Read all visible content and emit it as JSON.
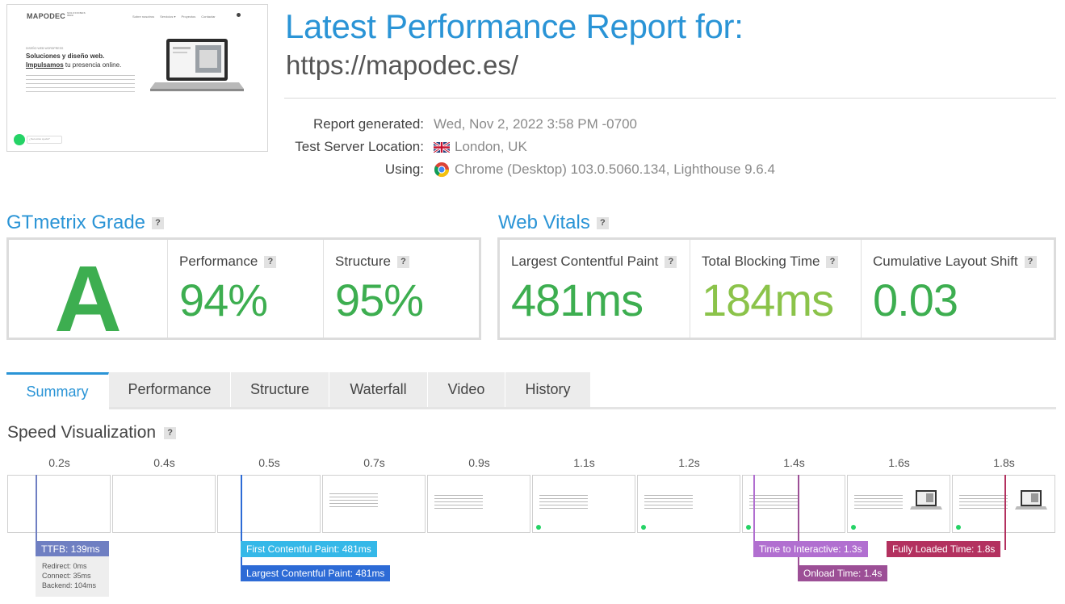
{
  "report": {
    "title": "Latest Performance Report for:",
    "url": "https://mapodec.es/",
    "generated_label": "Report generated:",
    "generated_value": "Wed, Nov 2, 2022 3:58 PM -0700",
    "location_label": "Test Server Location:",
    "location_value": "London, UK",
    "using_label": "Using:",
    "using_value": "Chrome (Desktop) 103.0.5060.134, Lighthouse 9.6.4"
  },
  "screenshot": {
    "brand": "MAPODEC",
    "brand_sub": "SOLUCIONES WEB",
    "nav": [
      "Sobre nosotros",
      "Servicios ▾",
      "Proyectos",
      "Contactar"
    ],
    "kicker": "DISEÑO WEB WORDPRESS",
    "headline1": "Soluciones y diseño web.",
    "headline2_bold": "Impulsamos",
    "headline2_rest": " tu presencia online.",
    "chat_label": "¿Necesitas ayuda?"
  },
  "grade": {
    "heading": "GTmetrix Grade",
    "letter": "A",
    "performance_label": "Performance",
    "performance_value": "94%",
    "structure_label": "Structure",
    "structure_value": "95%"
  },
  "vitals": {
    "heading": "Web Vitals",
    "lcp_label": "Largest Contentful Paint",
    "lcp_value": "481ms",
    "tbt_label": "Total Blocking Time",
    "tbt_value": "184ms",
    "cls_label": "Cumulative Layout Shift",
    "cls_value": "0.03"
  },
  "colors": {
    "accent": "#2a94d6",
    "good": "#3dae50",
    "ok": "#8bc34a",
    "ttfb": "#6f7fc2",
    "fcp": "#35b8e8",
    "lcp": "#2d6bd6",
    "tti": "#b16fd0",
    "onload": "#9c4f96",
    "fully_loaded": "#b3315f"
  },
  "tabs": [
    "Summary",
    "Performance",
    "Structure",
    "Waterfall",
    "Video",
    "History"
  ],
  "speed": {
    "heading": "Speed Visualization",
    "ticks": [
      "0.2s",
      "0.4s",
      "0.5s",
      "0.7s",
      "0.9s",
      "1.1s",
      "1.2s",
      "1.4s",
      "1.6s",
      "1.8s"
    ],
    "markers": {
      "ttfb": "TTFB: 139ms",
      "redirect": "Redirect: 0ms",
      "connect": "Connect: 35ms",
      "backend": "Backend: 104ms",
      "fcp": "First Contentful Paint: 481ms",
      "lcp": "Largest Contentful Paint: 481ms",
      "tti": "Time to Interactive: 1.3s",
      "onload": "Onload Time: 1.4s",
      "fully_loaded": "Fully Loaded Time: 1.8s"
    }
  },
  "help": "?"
}
